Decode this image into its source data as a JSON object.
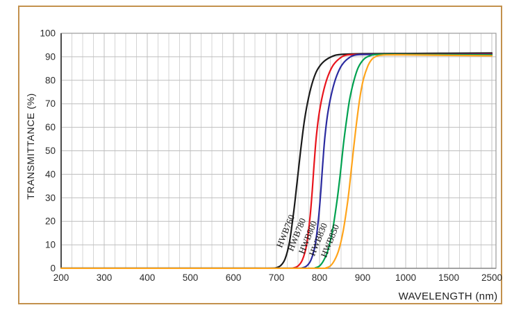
{
  "frame": {
    "border_color": "#c3914d",
    "background": "#ffffff"
  },
  "axis_titles": {
    "x": "WAVELENGTH (nm)",
    "y": "TRANSMITTANCE  (%)"
  },
  "chart_data": {
    "type": "line",
    "title": "",
    "xlabel": "WAVELENGTH (nm)",
    "ylabel": "TRANSMITTANCE (%)",
    "grid": true,
    "x_axis": {
      "tick_values": [
        200,
        300,
        400,
        500,
        600,
        700,
        800,
        900,
        1000,
        1500,
        2500
      ],
      "tick_labels": [
        "200",
        "300",
        "400",
        "500",
        "600",
        "700",
        "800",
        "900",
        "1000",
        "1500",
        "2500"
      ],
      "minor_divisions_per_interval": 4,
      "scale_note": "equal pixel spacing between labeled ticks; linear 200-1000 nm, compressed 1000-1500-2500 nm"
    },
    "y_axis": {
      "min": 0,
      "max": 100,
      "tick_step": 10,
      "tick_labels": [
        "0",
        "10",
        "20",
        "30",
        "40",
        "50",
        "60",
        "70",
        "80",
        "90",
        "100"
      ]
    },
    "series": [
      {
        "name": "HWB760",
        "color": "#1a1a1a",
        "label_pos": [
          415,
          335
        ],
        "points": [
          [
            200,
            0
          ],
          [
            500,
            0
          ],
          [
            650,
            0
          ],
          [
            685,
            0
          ],
          [
            700,
            0.3
          ],
          [
            710,
            1.2
          ],
          [
            720,
            4
          ],
          [
            730,
            11
          ],
          [
            740,
            24
          ],
          [
            748,
            37
          ],
          [
            756,
            50
          ],
          [
            765,
            63
          ],
          [
            775,
            73
          ],
          [
            785,
            80
          ],
          [
            795,
            84.5
          ],
          [
            810,
            88
          ],
          [
            830,
            90.2
          ],
          [
            850,
            91
          ],
          [
            900,
            91.3
          ],
          [
            1000,
            91.4
          ],
          [
            1500,
            91.5
          ],
          [
            2500,
            91.6
          ]
        ]
      },
      {
        "name": "HWB780",
        "color": "#e8151d",
        "label_pos": [
          431,
          340
        ],
        "points": [
          [
            200,
            0
          ],
          [
            500,
            0
          ],
          [
            650,
            0
          ],
          [
            725,
            0
          ],
          [
            740,
            0.2
          ],
          [
            750,
            1
          ],
          [
            760,
            3.5
          ],
          [
            770,
            10
          ],
          [
            778,
            22
          ],
          [
            783,
            33
          ],
          [
            788,
            46
          ],
          [
            793,
            57
          ],
          [
            800,
            67
          ],
          [
            810,
            76
          ],
          [
            820,
            82
          ],
          [
            832,
            86.5
          ],
          [
            848,
            89.5
          ],
          [
            865,
            90.8
          ],
          [
            900,
            91
          ],
          [
            1000,
            91.1
          ],
          [
            1500,
            91.1
          ],
          [
            2500,
            91.2
          ]
        ]
      },
      {
        "name": "HWB800",
        "color": "#2b2ba0",
        "label_pos": [
          447,
          344
        ],
        "points": [
          [
            200,
            0
          ],
          [
            500,
            0
          ],
          [
            650,
            0
          ],
          [
            745,
            0
          ],
          [
            760,
            0.2
          ],
          [
            770,
            1
          ],
          [
            780,
            3.5
          ],
          [
            790,
            10
          ],
          [
            798,
            22
          ],
          [
            803,
            33
          ],
          [
            808,
            46
          ],
          [
            813,
            57
          ],
          [
            820,
            67
          ],
          [
            830,
            76
          ],
          [
            840,
            82
          ],
          [
            852,
            86.5
          ],
          [
            868,
            89.5
          ],
          [
            885,
            90.8
          ],
          [
            920,
            91
          ],
          [
            1000,
            91
          ],
          [
            1500,
            91
          ],
          [
            2500,
            91
          ]
        ]
      },
      {
        "name": "HWB830",
        "color": "#00a14f",
        "label_pos": [
          462,
          347
        ],
        "points": [
          [
            200,
            0
          ],
          [
            500,
            0
          ],
          [
            650,
            0
          ],
          [
            778,
            0
          ],
          [
            790,
            0.2
          ],
          [
            800,
            1
          ],
          [
            810,
            3.5
          ],
          [
            820,
            8
          ],
          [
            830,
            16
          ],
          [
            840,
            28
          ],
          [
            848,
            40
          ],
          [
            855,
            52
          ],
          [
            862,
            62
          ],
          [
            870,
            72
          ],
          [
            880,
            80
          ],
          [
            890,
            85.5
          ],
          [
            902,
            88.8
          ],
          [
            915,
            90.3
          ],
          [
            935,
            91
          ],
          [
            1000,
            91
          ],
          [
            1500,
            90.9
          ],
          [
            2500,
            90.8
          ]
        ]
      },
      {
        "name": "HWB850",
        "color": "#ffa41b",
        "label_pos": [
          479,
          349
        ],
        "points": [
          [
            200,
            0
          ],
          [
            500,
            0
          ],
          [
            650,
            0
          ],
          [
            803,
            0
          ],
          [
            815,
            0.2
          ],
          [
            825,
            1
          ],
          [
            835,
            3.5
          ],
          [
            845,
            8
          ],
          [
            855,
            16
          ],
          [
            865,
            28
          ],
          [
            872,
            39
          ],
          [
            879,
            51
          ],
          [
            886,
            62
          ],
          [
            894,
            73
          ],
          [
            902,
            80.5
          ],
          [
            912,
            86
          ],
          [
            922,
            89
          ],
          [
            935,
            90.4
          ],
          [
            955,
            90.8
          ],
          [
            1000,
            90.8
          ],
          [
            1500,
            90.6
          ],
          [
            2500,
            90.4
          ]
        ]
      }
    ],
    "series_label_rotation_deg": -68
  }
}
